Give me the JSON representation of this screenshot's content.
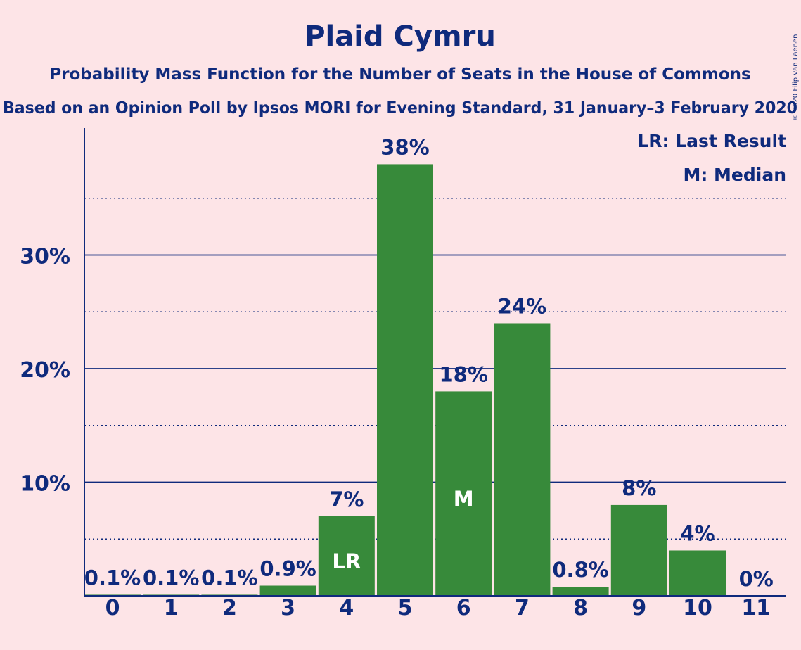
{
  "title": "Plaid Cymru",
  "subtitle": "Probability Mass Function for the Number of Seats in the House of Commons",
  "subtitle2": "Based on an Opinion Poll by Ipsos MORI for Evening Standard, 31 January–3 February 2020",
  "copyright": "© 2020 Filip van Laenen",
  "legend": {
    "lr": "LR: Last Result",
    "median": "M: Median"
  },
  "colors": {
    "bar": "#378a3a",
    "text": "#0f2a7c",
    "background": "#fde4e7",
    "grid": "#0f2a7c"
  },
  "chart_data": {
    "type": "bar",
    "categories": [
      "0",
      "1",
      "2",
      "3",
      "4",
      "5",
      "6",
      "7",
      "8",
      "9",
      "10",
      "11"
    ],
    "values": [
      0.1,
      0.1,
      0.1,
      0.9,
      7,
      38,
      18,
      24,
      0.8,
      8,
      4,
      0
    ],
    "data_labels": [
      "0.1%",
      "0.1%",
      "0.1%",
      "0.9%",
      "7%",
      "38%",
      "18%",
      "24%",
      "0.8%",
      "8%",
      "4%",
      "0%"
    ],
    "bar_markers": {
      "4": "LR",
      "6": "M"
    },
    "ylim": [
      0,
      41
    ],
    "yticks": [
      10,
      20,
      30
    ],
    "ytick_labels": [
      "10%",
      "20%",
      "30%"
    ],
    "minor_gridlines": [
      5,
      15,
      25,
      35
    ],
    "grid": true,
    "legend_placement": "top-right"
  }
}
